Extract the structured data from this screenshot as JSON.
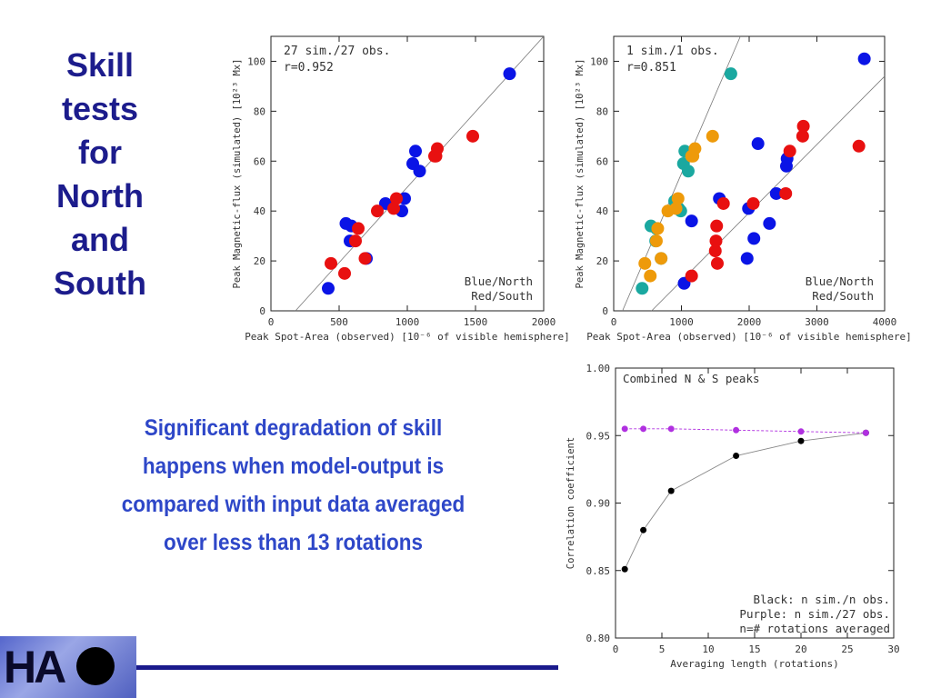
{
  "slide": {
    "title_lines": [
      "Skill",
      "tests",
      "for",
      "North",
      "and",
      "South"
    ],
    "body": "Significant degradation of skill happens when model-output is compared with input data averaged over less than 13 rotations",
    "logo_text": "HA"
  },
  "colors": {
    "blue": "#0a14e6",
    "red": "#e81010",
    "teal": "#1aa8a0",
    "orange": "#ee9a0a",
    "purple": "#b030e0",
    "black": "#000000",
    "title": "#1c1c8c",
    "body": "#2e47c8"
  },
  "chart_data": [
    {
      "type": "scatter",
      "annotation_lines": [
        "27 sim./27 obs.",
        "r=0.952"
      ],
      "legend_lines": [
        "Blue/North",
        "Red/South"
      ],
      "xlabel": "Peak Spot-Area (observed) [10⁻⁶ of visible hemisphere]",
      "ylabel": "Peak Magnetic-flux (simulated) [10²³ Mx]",
      "xlim": [
        0,
        2000
      ],
      "ylim": [
        0,
        110
      ],
      "xticks": [
        0,
        500,
        1000,
        1500,
        2000
      ],
      "yticks": [
        0,
        20,
        40,
        60,
        80,
        100
      ],
      "fit_lines": [
        {
          "x1": 180,
          "y1": 0,
          "x2": 2000,
          "y2": 110
        }
      ],
      "series": [
        {
          "color": "blue",
          "points": [
            [
              420,
              9
            ],
            [
              550,
              35
            ],
            [
              580,
              28
            ],
            [
              590,
              34
            ],
            [
              700,
              21
            ],
            [
              840,
              43
            ],
            [
              960,
              40
            ],
            [
              980,
              45
            ],
            [
              1040,
              59
            ],
            [
              1060,
              64
            ],
            [
              1090,
              56
            ],
            [
              1750,
              95
            ]
          ]
        },
        {
          "color": "red",
          "points": [
            [
              440,
              19
            ],
            [
              540,
              15
            ],
            [
              620,
              28
            ],
            [
              640,
              33
            ],
            [
              690,
              21
            ],
            [
              780,
              40
            ],
            [
              900,
              41
            ],
            [
              920,
              45
            ],
            [
              1200,
              62
            ],
            [
              1210,
              62
            ],
            [
              1220,
              65
            ],
            [
              1480,
              70
            ]
          ]
        }
      ]
    },
    {
      "type": "scatter",
      "annotation_lines": [
        "1 sim./1 obs.",
        "r=0.851"
      ],
      "legend_lines": [
        "Blue/North",
        "Red/South"
      ],
      "xlabel": "Peak Spot-Area (observed) [10⁻⁶ of visible hemisphere]",
      "ylabel": "Peak Magnetic-flux (simulated) [10²³ Mx]",
      "xlim": [
        0,
        4000
      ],
      "ylim": [
        0,
        110
      ],
      "xticks": [
        0,
        1000,
        2000,
        3000,
        4000
      ],
      "yticks": [
        0,
        20,
        40,
        60,
        80,
        100
      ],
      "fit_lines": [
        {
          "x1": 130,
          "y1": 0,
          "x2": 1870,
          "y2": 110
        },
        {
          "x1": 560,
          "y1": 0,
          "x2": 4000,
          "y2": 94
        }
      ],
      "series": [
        {
          "color": "blue",
          "points": [
            [
              1040,
              11
            ],
            [
              1150,
              36
            ],
            [
              1560,
              45
            ],
            [
              1970,
              21
            ],
            [
              1990,
              41
            ],
            [
              2070,
              29
            ],
            [
              2130,
              67
            ],
            [
              2300,
              35
            ],
            [
              2400,
              47
            ],
            [
              2550,
              58
            ],
            [
              2560,
              61
            ],
            [
              3700,
              101
            ]
          ]
        },
        {
          "color": "red",
          "points": [
            [
              1150,
              14
            ],
            [
              1500,
              24
            ],
            [
              1510,
              28
            ],
            [
              1520,
              34
            ],
            [
              1530,
              19
            ],
            [
              1620,
              43
            ],
            [
              2060,
              43
            ],
            [
              2540,
              47
            ],
            [
              2600,
              64
            ],
            [
              2790,
              70
            ],
            [
              2800,
              74
            ],
            [
              3620,
              66
            ]
          ]
        },
        {
          "color": "teal",
          "points": [
            [
              420,
              9
            ],
            [
              550,
              34
            ],
            [
              620,
              28
            ],
            [
              630,
              33
            ],
            [
              700,
              21
            ],
            [
              900,
              44
            ],
            [
              960,
              41
            ],
            [
              990,
              40
            ],
            [
              1030,
              59
            ],
            [
              1050,
              64
            ],
            [
              1100,
              56
            ],
            [
              1730,
              95
            ]
          ]
        },
        {
          "color": "orange",
          "points": [
            [
              460,
              19
            ],
            [
              540,
              14
            ],
            [
              630,
              28
            ],
            [
              650,
              33
            ],
            [
              700,
              21
            ],
            [
              800,
              40
            ],
            [
              920,
              41
            ],
            [
              950,
              45
            ],
            [
              1150,
              62
            ],
            [
              1170,
              62
            ],
            [
              1200,
              65
            ],
            [
              1460,
              70
            ]
          ]
        }
      ]
    },
    {
      "type": "line",
      "title": "Combined N & S peaks",
      "legend_lines": [
        "Black: n sim./n obs.",
        "Purple: n sim./27 obs.",
        "n=# rotations averaged"
      ],
      "xlabel": "Averaging length (rotations)",
      "ylabel": "Correlation coefficient",
      "xlim": [
        0,
        30
      ],
      "ylim": [
        0.8,
        1.0
      ],
      "xticks": [
        0,
        5,
        10,
        15,
        20,
        25,
        30
      ],
      "yticks": [
        0.8,
        0.85,
        0.9,
        0.95,
        1.0
      ],
      "series": [
        {
          "name": "Black",
          "color": "black",
          "x": [
            1,
            3,
            6,
            13,
            20,
            27
          ],
          "y": [
            0.851,
            0.88,
            0.909,
            0.935,
            0.946,
            0.952
          ]
        },
        {
          "name": "Purple",
          "color": "purple",
          "x": [
            1,
            3,
            6,
            13,
            20,
            27
          ],
          "y": [
            0.955,
            0.955,
            0.955,
            0.954,
            0.953,
            0.952
          ]
        }
      ]
    }
  ]
}
